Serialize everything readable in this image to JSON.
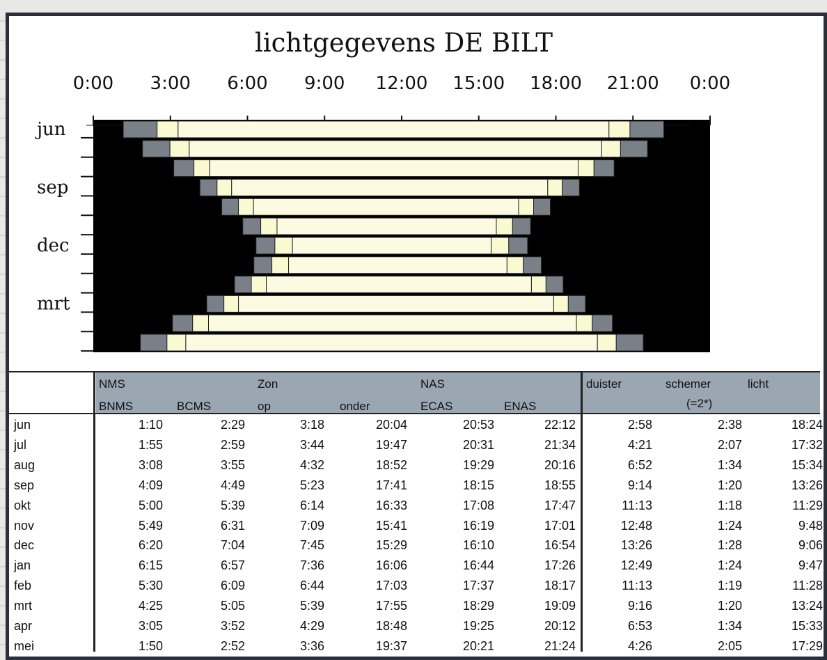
{
  "chart_data": {
    "type": "bar",
    "title": "lichtgegevens DE BILT",
    "x_tick_labels": [
      "0:00",
      "3:00",
      "6:00",
      "9:00",
      "12:00",
      "15:00",
      "18:00",
      "21:00",
      "0:00"
    ],
    "x_range_hours": [
      0,
      24
    ],
    "y_labels": [
      "jun",
      "sep",
      "dec",
      "mrt"
    ],
    "y_label_months": [
      "jun",
      "sep",
      "dec",
      "mrt"
    ],
    "rows": [
      {
        "month": "jun",
        "BNMS": "1:10",
        "BCMS": "2:29",
        "op": "3:18",
        "onder": "20:04",
        "ECAS": "20:53",
        "ENAS": "22:12"
      },
      {
        "month": "jul",
        "BNMS": "1:55",
        "BCMS": "2:59",
        "op": "3:44",
        "onder": "19:47",
        "ECAS": "20:31",
        "ENAS": "21:34"
      },
      {
        "month": "aug",
        "BNMS": "3:08",
        "BCMS": "3:55",
        "op": "4:32",
        "onder": "18:52",
        "ECAS": "19:29",
        "ENAS": "20:16"
      },
      {
        "month": "sep",
        "BNMS": "4:09",
        "BCMS": "4:49",
        "op": "5:23",
        "onder": "17:41",
        "ECAS": "18:15",
        "ENAS": "18:55"
      },
      {
        "month": "okt",
        "BNMS": "5:00",
        "BCMS": "5:39",
        "op": "6:14",
        "onder": "16:33",
        "ECAS": "17:08",
        "ENAS": "17:47"
      },
      {
        "month": "nov",
        "BNMS": "5:49",
        "BCMS": "6:31",
        "op": "7:09",
        "onder": "15:41",
        "ECAS": "16:19",
        "ENAS": "17:01"
      },
      {
        "month": "dec",
        "BNMS": "6:20",
        "BCMS": "7:04",
        "op": "7:45",
        "onder": "15:29",
        "ECAS": "16:10",
        "ENAS": "16:54"
      },
      {
        "month": "jan",
        "BNMS": "6:15",
        "BCMS": "6:57",
        "op": "7:36",
        "onder": "16:06",
        "ECAS": "16:44",
        "ENAS": "17:26"
      },
      {
        "month": "feb",
        "BNMS": "5:30",
        "BCMS": "6:09",
        "op": "6:44",
        "onder": "17:03",
        "ECAS": "17:37",
        "ENAS": "18:17"
      },
      {
        "month": "mrt",
        "BNMS": "4:25",
        "BCMS": "5:05",
        "op": "5:39",
        "onder": "17:55",
        "ECAS": "18:29",
        "ENAS": "19:09"
      },
      {
        "month": "apr",
        "BNMS": "3:05",
        "BCMS": "3:52",
        "op": "4:29",
        "onder": "18:48",
        "ECAS": "19:25",
        "ENAS": "20:12"
      },
      {
        "month": "mei",
        "BNMS": "1:50",
        "BCMS": "2:52",
        "op": "3:36",
        "onder": "19:37",
        "ECAS": "20:21",
        "ENAS": "21:24"
      }
    ],
    "colors": {
      "night": "#000000",
      "nautical_twilight": "#7a8088",
      "civil_twilight": "#fafad2",
      "daylight": "#fcfbe2",
      "bar_outline": "#222222"
    }
  },
  "table": {
    "header_top": {
      "nms": "NMS",
      "zon": "Zon",
      "nas": "NAS",
      "duister": "duister",
      "schemer": "schemer",
      "licht": "licht"
    },
    "header_bottom": {
      "bnms": "BNMS",
      "bcms": "BCMS",
      "op": "op",
      "onder": "onder",
      "ecas": "ECAS",
      "enas": "ENAS",
      "schemer_note": "(=2*)"
    },
    "summary": [
      {
        "duister": "2:58",
        "schemer": "2:38",
        "licht": "18:24"
      },
      {
        "duister": "4:21",
        "schemer": "2:07",
        "licht": "17:32"
      },
      {
        "duister": "6:52",
        "schemer": "1:34",
        "licht": "15:34"
      },
      {
        "duister": "9:14",
        "schemer": "1:20",
        "licht": "13:26"
      },
      {
        "duister": "11:13",
        "schemer": "1:18",
        "licht": "11:29"
      },
      {
        "duister": "12:48",
        "schemer": "1:24",
        "licht": "9:48"
      },
      {
        "duister": "13:26",
        "schemer": "1:28",
        "licht": "9:06"
      },
      {
        "duister": "12:49",
        "schemer": "1:24",
        "licht": "9:47"
      },
      {
        "duister": "11:13",
        "schemer": "1:19",
        "licht": "11:28"
      },
      {
        "duister": "9:16",
        "schemer": "1:20",
        "licht": "13:24"
      },
      {
        "duister": "6:53",
        "schemer": "1:34",
        "licht": "15:33"
      },
      {
        "duister": "4:26",
        "schemer": "2:05",
        "licht": "17:29"
      }
    ]
  }
}
